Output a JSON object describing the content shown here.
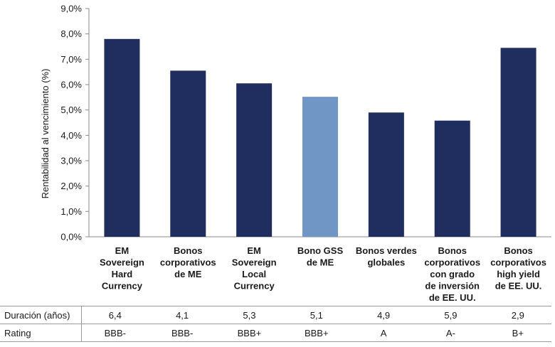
{
  "chart_data": {
    "type": "bar",
    "ylabel": "Rentabilidad al vencimiento (%)",
    "ylim": [
      0,
      9
    ],
    "y_ticks": [
      "0,0%",
      "1,0%",
      "2,0%",
      "3,0%",
      "4,0%",
      "5,0%",
      "6,0%",
      "7,0%",
      "8,0%",
      "9,0%"
    ],
    "categories": [
      [
        "EM",
        "Sovereign",
        "Hard",
        "Currency"
      ],
      [
        "Bonos",
        "corporativos",
        "de ME"
      ],
      [
        "EM",
        "Sovereign",
        "Local",
        "Currency"
      ],
      [
        "Bono GSS",
        "de ME"
      ],
      [
        "Bonos verdes",
        "globales"
      ],
      [
        "Bonos",
        "corporativos",
        "con grado",
        "de inversión",
        "de EE. UU."
      ],
      [
        "Bonos",
        "corporativos",
        "high yield",
        "de EE. UU."
      ]
    ],
    "values": [
      7.8,
      6.55,
      6.05,
      5.52,
      4.9,
      4.58,
      7.45
    ],
    "bar_colors": [
      "#1f2d5f",
      "#1f2d5f",
      "#1f2d5f",
      "#6f96c4",
      "#1f2d5f",
      "#1f2d5f",
      "#1f2d5f"
    ],
    "grid": false
  },
  "table": {
    "rows": [
      {
        "label": "Duración (años)",
        "values": [
          "6,4",
          "4,1",
          "5,3",
          "5,1",
          "4,9",
          "5,9",
          "2,9"
        ]
      },
      {
        "label": "Rating",
        "values": [
          "BBB-",
          "BBB-",
          "BBB+",
          "BBB+",
          "A",
          "A-",
          "B+"
        ]
      }
    ]
  }
}
